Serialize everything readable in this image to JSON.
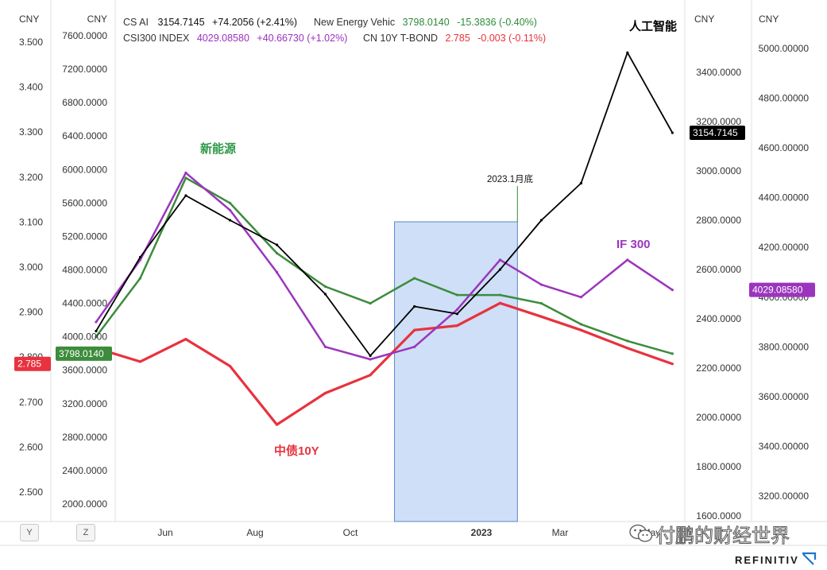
{
  "header": {
    "row1": [
      {
        "name": "CS AI",
        "value": "3154.7145",
        "change": "+74.2056 (+2.41%)",
        "color": "#000000"
      },
      {
        "name": "New Energy Vehic",
        "value": "3798.0140",
        "change": "-15.3836 (-0.40%)",
        "color": "#2e8b3a"
      }
    ],
    "row2": [
      {
        "name": "CSI300 INDEX",
        "value": "4029.08580",
        "change": "+40.66730 (+1.02%)",
        "color": "#9b30c0"
      },
      {
        "name": "CN 10Y T-BOND",
        "value": "2.785",
        "change": "-0.003 (-0.11%)",
        "color": "#e8323e"
      }
    ]
  },
  "axes": {
    "unit": "CNY",
    "bond_ticks": [
      "3.500",
      "3.400",
      "3.300",
      "3.200",
      "3.100",
      "3.000",
      "2.900",
      "2.800",
      "2.700",
      "2.600",
      "2.500"
    ],
    "nev_ticks": [
      "7600.0000",
      "7200.0000",
      "6800.0000",
      "6400.0000",
      "6000.0000",
      "5600.0000",
      "5200.0000",
      "4800.0000",
      "4400.0000",
      "4000.0000",
      "3600.0000",
      "3200.0000",
      "2800.0000",
      "2400.0000",
      "2000.0000"
    ],
    "ai_ticks": [
      "3400.0000",
      "3200.0000",
      "3000.0000",
      "2800.0000",
      "2600.0000",
      "2400.0000",
      "2200.0000",
      "2000.0000",
      "1800.0000",
      "1600.0000"
    ],
    "csi_ticks": [
      "5000.00000",
      "4800.00000",
      "4600.00000",
      "4400.00000",
      "4200.00000",
      "4000.00000",
      "3800.00000",
      "3600.00000",
      "3400.00000",
      "3200.00000"
    ],
    "x_ticks": [
      "Jun",
      "Aug",
      "Oct",
      "2023",
      "Mar",
      "May"
    ]
  },
  "price_tags": {
    "bond": "2.785",
    "nev": "3798.0140",
    "ai": "3154.7145",
    "csi": "4029.08580"
  },
  "annotations": {
    "ai": "人工智能",
    "nev": "新能源",
    "csi": "IF 300",
    "bond": "中债10Y",
    "highlight": "2023.1月底"
  },
  "buttons": {
    "y": "Y",
    "z": "Z"
  },
  "watermark": "付鹏的财经世界",
  "brand": "REFINITIV",
  "colors": {
    "ai": "#000000",
    "nev": "#3c8c3c",
    "csi": "#9b35bd",
    "bond": "#e8323e",
    "highlight": "#cfdff7"
  },
  "chart_data": {
    "type": "line",
    "x": [
      "2022-04",
      "2022-05",
      "2022-06",
      "2022-07",
      "2022-08",
      "2022-09",
      "2022-10",
      "2022-11",
      "2022-12",
      "2023-01",
      "2023-02",
      "2023-03",
      "2023-04",
      "2023-05"
    ],
    "series": [
      {
        "name": "CS AI",
        "axis": "CNY (AI)",
        "values": [
          2350,
          2650,
          2900,
          2800,
          2700,
          2500,
          2250,
          2450,
          2420,
          2600,
          2800,
          2950,
          3480,
          3154.7145
        ]
      },
      {
        "name": "New Energy Vehic",
        "axis": "CNY (NEV)",
        "values": [
          4000,
          4700,
          5900,
          5600,
          5000,
          4600,
          4400,
          4700,
          4500,
          4500,
          4400,
          4150,
          3950,
          3798.014
        ]
      },
      {
        "name": "CSI300 INDEX",
        "axis": "CNY (CSI300)",
        "values": [
          3900,
          4150,
          4500,
          4350,
          4100,
          3800,
          3750,
          3800,
          3950,
          4150,
          4050,
          4000,
          4150,
          4029.0858
        ]
      },
      {
        "name": "CN 10Y T-BOND",
        "axis": "CNY (bond)",
        "values": [
          2.82,
          2.79,
          2.84,
          2.78,
          2.65,
          2.72,
          2.76,
          2.86,
          2.87,
          2.92,
          2.89,
          2.86,
          2.82,
          2.785
        ]
      }
    ],
    "highlight_range": [
      "2022-11",
      "2023-01"
    ]
  }
}
